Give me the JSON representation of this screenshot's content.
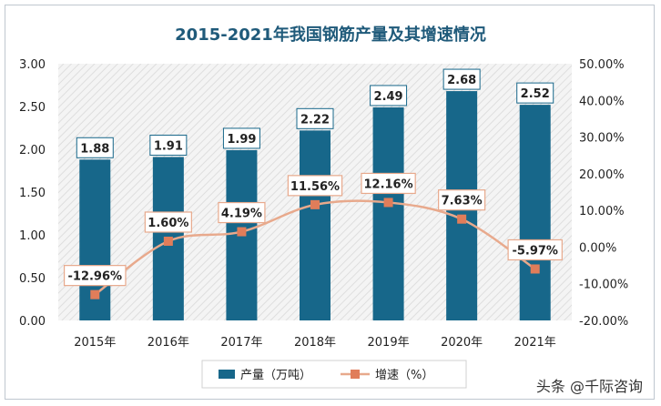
{
  "chart_data": {
    "type": "bar",
    "title": "2015-2021年我国钢筋产量及其增速情况",
    "categories": [
      "2015年",
      "2016年",
      "2017年",
      "2018年",
      "2019年",
      "2020年",
      "2021年"
    ],
    "series": [
      {
        "name": "产量（万吨）",
        "type": "bar",
        "axis": "left",
        "values": [
          1.88,
          1.91,
          1.99,
          2.22,
          2.49,
          2.68,
          2.52
        ],
        "labels": [
          "1.88",
          "1.91",
          "1.99",
          "2.22",
          "2.49",
          "2.68",
          "2.52"
        ]
      },
      {
        "name": "增速（%）",
        "type": "line",
        "axis": "right",
        "values": [
          -12.96,
          1.6,
          4.19,
          11.56,
          12.16,
          7.63,
          -5.97
        ],
        "labels": [
          "-12.96%",
          "1.60%",
          "4.19%",
          "11.56%",
          "12.16%",
          "7.63%",
          "-5.97%"
        ]
      }
    ],
    "y_left": {
      "min": 0,
      "max": 3.0,
      "step": 0.5,
      "ticks": [
        "0.00",
        "0.50",
        "1.00",
        "1.50",
        "2.00",
        "2.50",
        "3.00"
      ]
    },
    "y_right": {
      "min": -20,
      "max": 50,
      "step": 10,
      "ticks": [
        "-20.00%",
        "-10.00%",
        "0.00%",
        "10.00%",
        "20.00%",
        "30.00%",
        "40.00%",
        "50.00%"
      ]
    },
    "legend_position": "bottom",
    "grid": false
  },
  "colors": {
    "title": "#1f5a7a",
    "bar": "#17678a",
    "line": "#e8a98c",
    "marker": "#e07d5a",
    "axis_text": "#222222",
    "plot_bg": "#f2f2f2",
    "hatch": "#dcdcdc"
  },
  "watermark": "头条 @千际咨询"
}
